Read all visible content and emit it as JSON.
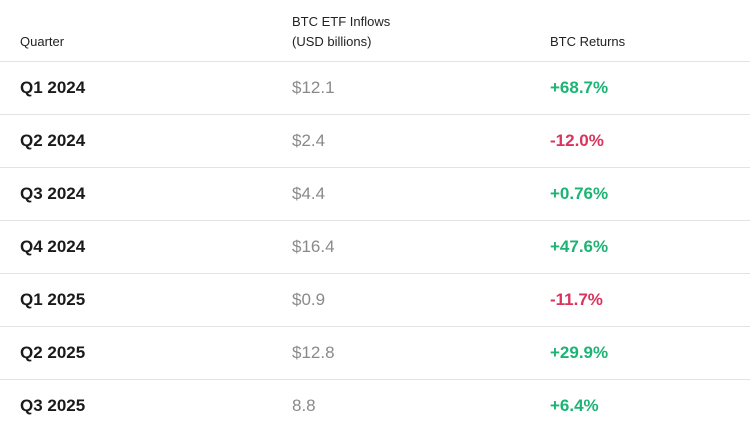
{
  "table": {
    "headers": [
      "Quarter",
      "BTC ETF Inflows (USD billions)",
      "BTC Returns"
    ],
    "rows": [
      [
        "Q1 2024",
        "$12.1",
        "+68.7%"
      ],
      [
        "Q2 2024",
        "$2.4",
        "-12.0%"
      ],
      [
        "Q3 2024",
        "$4.4",
        "+0.76%"
      ],
      [
        "Q4 2024",
        "$16.4",
        "+47.6%"
      ],
      [
        "Q1 2025",
        "$0.9",
        "-11.7%"
      ],
      [
        "Q2 2025",
        "$12.8",
        "+29.9%"
      ],
      [
        "Q3 2025",
        "8.8",
        "+6.4%"
      ]
    ]
  }
}
